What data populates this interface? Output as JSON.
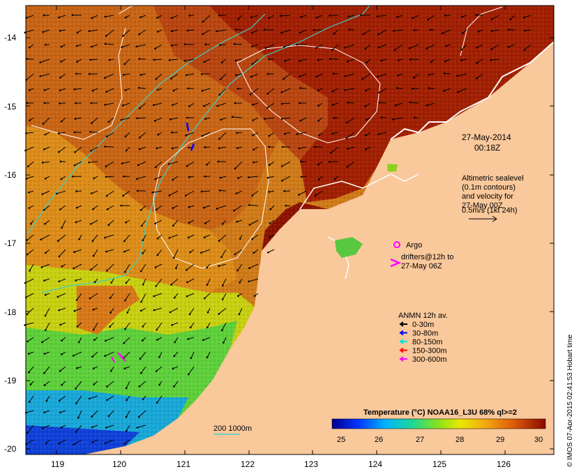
{
  "map": {
    "x_ticks": [
      "119",
      "120",
      "121",
      "122",
      "123",
      "124",
      "125",
      "126"
    ],
    "y_ticks": [
      "-14",
      "-15",
      "-16",
      "-17",
      "-18",
      "-19",
      "-20"
    ],
    "timestamp_date": "27-May-2014",
    "timestamp_time": "00:18Z",
    "altimetry_text": [
      "Altimetric sealevel",
      "(0.1m contours)",
      "and velocity for",
      "27-May 00Z",
      "0.5m/s (1kt 24h)"
    ],
    "argo_label": "Argo",
    "drifters_label_1": "drifters@12h to",
    "drifters_label_2": "27-May 06Z",
    "anmn_title": "ANMN 12h av.",
    "anmn_items": [
      {
        "label": "0-30m",
        "color": "#000000"
      },
      {
        "label": "30-80m",
        "color": "#0000ff"
      },
      {
        "label": "80-150m",
        "color": "#00e0e0"
      },
      {
        "label": "150-300m",
        "color": "#ff0000"
      },
      {
        "label": "300-600m",
        "color": "#ff00ff"
      }
    ],
    "isobath_label": "200  1000m",
    "colorbar_title": "Temperature (°C) NOAA16_L3U 68% ql>=2",
    "colorbar_ticks": [
      "25",
      "26",
      "27",
      "28",
      "29",
      "30"
    ],
    "credit": "© IMOS 07-Apr-2015 02:41:53 Hobart time",
    "colors": {
      "land": "#f9c89b",
      "warm": "#9b1a00",
      "mid": "#cc6a14",
      "cool": "#e3a21a",
      "isobath": "#40d0c8"
    }
  }
}
